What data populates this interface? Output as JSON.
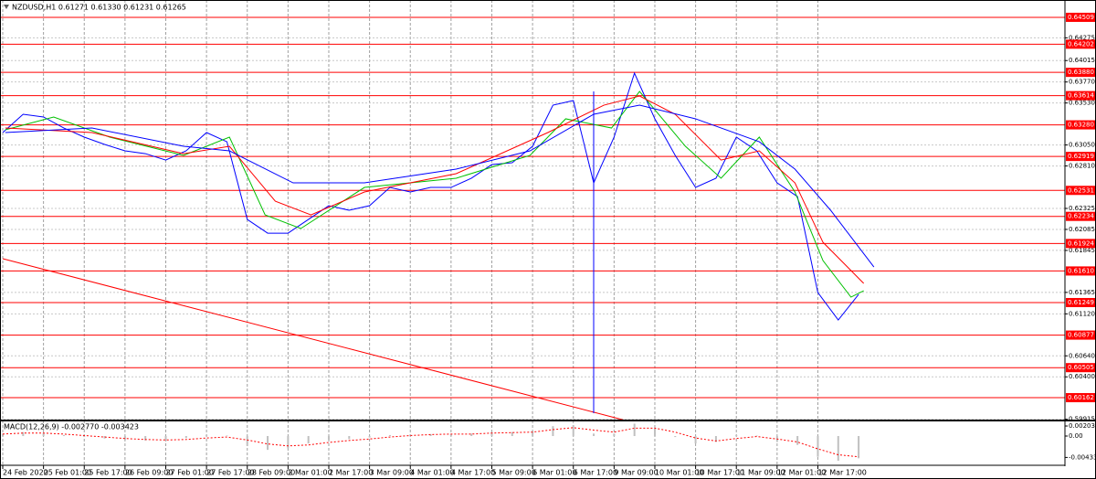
{
  "chart_data": [
    {
      "type": "line",
      "title": "NZDUSD,H1  0.61271 0.61330 0.61231 0.61265",
      "xlim": [
        0,
        417
      ],
      "ylim": [
        0.59901,
        0.64707
      ],
      "grid": true,
      "xticks": [
        {
          "value": 0,
          "label": "24 Feb 2020"
        },
        {
          "value": 16,
          "label": "25 Feb 01:00"
        },
        {
          "value": 32,
          "label": "25 Feb 17:00"
        },
        {
          "value": 48,
          "label": "26 Feb 09:00"
        },
        {
          "value": 64,
          "label": "27 Feb 01:00"
        },
        {
          "value": 80,
          "label": "27 Feb 17:00"
        },
        {
          "value": 96,
          "label": "28 Feb 09:00"
        },
        {
          "value": 112,
          "label": "2 Mar 01:00"
        },
        {
          "value": 128,
          "label": "2 Mar 17:00"
        },
        {
          "value": 144,
          "label": "3 Mar 09:00"
        },
        {
          "value": 160,
          "label": "4 Mar 01:00"
        },
        {
          "value": 176,
          "label": "4 Mar 17:00"
        },
        {
          "value": 192,
          "label": "5 Mar 09:00"
        },
        {
          "value": 208,
          "label": "6 Mar 01:00"
        },
        {
          "value": 224,
          "label": "6 Mar 17:00"
        },
        {
          "value": 240,
          "label": "9 Mar 09:00"
        },
        {
          "value": 256,
          "label": "10 Mar 01:00"
        },
        {
          "value": 272,
          "label": "10 Mar 17:00"
        },
        {
          "value": 288,
          "label": "11 Mar 09:00"
        },
        {
          "value": 304,
          "label": "12 Mar 01:00"
        },
        {
          "value": 320,
          "label": "12 Mar 17:00"
        }
      ],
      "yticks": [
        0.64275,
        0.64015,
        {
          "value": 0.6377,
          "label": "0.63770"
        },
        {
          "value": 0.6353,
          "label": "0.63530"
        },
        {
          "value": 0.6305,
          "label": "0.63050"
        },
        {
          "value": 0.6281,
          "label": "0.62810"
        },
        0.62325,
        0.62085,
        0.61845,
        0.61365,
        {
          "value": 0.6112,
          "label": "0.61120"
        },
        {
          "value": 0.6064,
          "label": "0.60640"
        },
        {
          "value": 0.604,
          "label": "0.60400"
        },
        0.59915
      ],
      "levels": {
        "color": "#ff0000",
        "values": [
          0.64509,
          0.64202,
          {
            "value": 0.6388,
            "label": "0.63880"
          },
          0.63614,
          {
            "value": 0.6328,
            "label": "0.63280"
          },
          0.62919,
          0.62531,
          0.62234,
          0.61924,
          {
            "value": 0.6161,
            "label": "0.61610"
          },
          0.61249,
          0.60877,
          0.60505,
          0.60162
        ]
      },
      "series": [
        {
          "color": "#0000ff",
          "x": [
            0,
            8,
            16,
            24,
            32,
            40,
            48,
            56,
            64,
            72,
            80,
            88,
            96,
            104,
            112,
            120,
            128,
            136,
            144,
            152,
            160,
            168,
            176,
            184,
            192,
            200,
            208,
            216,
            224,
            232,
            240,
            248,
            256,
            264,
            272,
            280,
            288,
            296,
            304,
            312,
            320,
            328,
            336
          ],
          "values": [
            0.63192,
            0.63401,
            0.6337,
            0.63244,
            0.6314,
            0.63056,
            0.62983,
            0.62951,
            0.62878,
            0.62983,
            0.63192,
            0.63087,
            0.62199,
            0.62042,
            0.62042,
            0.62199,
            0.62356,
            0.62304,
            0.62356,
            0.62565,
            0.62513,
            0.62565,
            0.62565,
            0.6267,
            0.62826,
            0.62847,
            0.63035,
            0.63505,
            0.63558,
            0.62617,
            0.6314,
            0.63871,
            0.63349,
            0.62931,
            0.62565,
            0.6267,
            0.6314,
            0.62983,
            0.62617,
            0.6246,
            0.61363,
            0.6105,
            0.61342
          ]
        },
        {
          "color": "#00c000",
          "x": [
            1,
            20,
            42,
            71,
            89,
            103,
            117,
            142,
            178,
            207,
            221,
            239,
            250,
            268,
            282,
            297,
            311,
            322,
            333,
            338
          ],
          "values": [
            0.63223,
            0.6337,
            0.6314,
            0.62931,
            0.6314,
            0.62251,
            0.62095,
            0.62565,
            0.6267,
            0.62931,
            0.63349,
            0.63244,
            0.63662,
            0.63035,
            0.6267,
            0.6314,
            0.62513,
            0.61729,
            0.61311,
            0.61384
          ]
        },
        {
          "color": "#ff0000",
          "x": [
            1,
            35,
            71,
            89,
            107,
            121,
            142,
            178,
            214,
            236,
            250,
            264,
            282,
            297,
            311,
            322,
            338
          ],
          "values": [
            0.63244,
            0.63192,
            0.62951,
            0.63035,
            0.62408,
            0.62251,
            0.62513,
            0.62722,
            0.63192,
            0.63505,
            0.6361,
            0.63401,
            0.62878,
            0.62983,
            0.62617,
            0.61938,
            0.61468
          ]
        },
        {
          "color": "#0000ff",
          "x": [
            1,
            35,
            71,
            89,
            114,
            142,
            178,
            207,
            232,
            250,
            272,
            297,
            311,
            325,
            342
          ],
          "values": [
            0.63192,
            0.63244,
            0.63035,
            0.62983,
            0.62617,
            0.62617,
            0.62774,
            0.62983,
            0.63401,
            0.63505,
            0.63349,
            0.63087,
            0.62774,
            0.62304,
            0.61656
          ]
        }
      ]
    },
    {
      "type": "macd",
      "title": "MACD(12,26,9) -0.002770 -0.003423",
      "xlim": [
        0,
        417
      ],
      "ylim": [
        -0.00574,
        0.00278
      ],
      "yticks": [
        0.002036,
        {
          "value": 0,
          "label": "0.00"
        },
        -0.004332
      ],
      "x": [
        0,
        8,
        16,
        24,
        32,
        40,
        48,
        56,
        64,
        72,
        80,
        88,
        96,
        104,
        112,
        120,
        128,
        136,
        144,
        152,
        160,
        168,
        176,
        184,
        192,
        200,
        208,
        216,
        224,
        232,
        240,
        248,
        256,
        264,
        272,
        280,
        288,
        296,
        304,
        312,
        320,
        328,
        336
      ],
      "values": [
        0.0005,
        0.0008,
        0.0006,
        0.0002,
        -0.0002,
        -0.0005,
        -0.0008,
        -0.0009,
        -0.001,
        -0.0004,
        0.0002,
        0.0001,
        -0.002,
        -0.0028,
        -0.0025,
        -0.0015,
        -0.0008,
        -0.0006,
        -0.0003,
        0.0002,
        0.0003,
        0.0004,
        0.0004,
        0.0005,
        0.0008,
        0.0008,
        0.001,
        0.002,
        0.0022,
        0.0005,
        0.0005,
        0.0025,
        0.0015,
        -0.0002,
        -0.0015,
        -0.0012,
        0.0002,
        0.0001,
        -0.0012,
        -0.0018,
        -0.0042,
        -0.005,
        -0.0045
      ],
      "color": "#c0c0c0",
      "signal": {
        "color": "#ff0000",
        "values": [
          0.0004,
          0.0006,
          0.0006,
          0.0004,
          0.0001,
          -0.0002,
          -0.0005,
          -0.0007,
          -0.0008,
          -0.0007,
          -0.0004,
          -0.0002,
          -0.0008,
          -0.0016,
          -0.002,
          -0.0018,
          -0.0013,
          -0.0009,
          -0.0006,
          -0.0002,
          0.0001,
          0.0003,
          0.0004,
          0.0004,
          0.0006,
          0.0007,
          0.0008,
          0.0013,
          0.0017,
          0.0012,
          0.0008,
          0.0016,
          0.0016,
          0.0008,
          -0.0004,
          -0.001,
          -0.0005,
          -0.0001,
          -0.0006,
          -0.0012,
          -0.0026,
          -0.0038,
          -0.0042
        ]
      }
    }
  ]
}
